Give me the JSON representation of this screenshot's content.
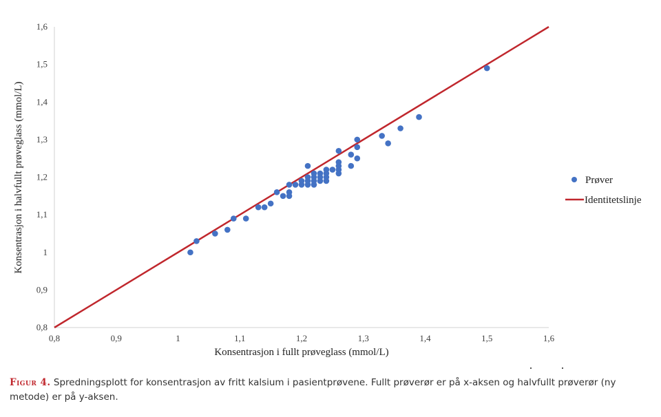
{
  "chart_data": {
    "type": "scatter",
    "title": "",
    "xlabel": "Konsentrasjon i fullt prøveglass (mmol/L)",
    "ylabel": "Konsentrasjon i halvfullt prøveglass (mmol/L)",
    "xlim": [
      0.8,
      1.6
    ],
    "ylim": [
      0.8,
      1.6
    ],
    "x_ticks": [
      "0,8",
      "0,9",
      "1",
      "1,1",
      "1,2",
      "1,3",
      "1,4",
      "1,5",
      "1,6"
    ],
    "y_ticks": [
      "0,8",
      "0,9",
      "1",
      "1,1",
      "1,2",
      "1,3",
      "1,4",
      "1,5",
      "1,6"
    ],
    "grid": false,
    "legend_position": "right",
    "series": [
      {
        "name": "Prøver",
        "type": "scatter",
        "color": "#4472c4",
        "points": [
          [
            1.02,
            1.0
          ],
          [
            1.03,
            1.03
          ],
          [
            1.06,
            1.05
          ],
          [
            1.08,
            1.06
          ],
          [
            1.09,
            1.09
          ],
          [
            1.11,
            1.09
          ],
          [
            1.13,
            1.12
          ],
          [
            1.14,
            1.12
          ],
          [
            1.15,
            1.13
          ],
          [
            1.16,
            1.16
          ],
          [
            1.17,
            1.15
          ],
          [
            1.18,
            1.15
          ],
          [
            1.18,
            1.16
          ],
          [
            1.18,
            1.18
          ],
          [
            1.19,
            1.18
          ],
          [
            1.2,
            1.18
          ],
          [
            1.2,
            1.19
          ],
          [
            1.21,
            1.18
          ],
          [
            1.21,
            1.19
          ],
          [
            1.21,
            1.2
          ],
          [
            1.21,
            1.23
          ],
          [
            1.22,
            1.18
          ],
          [
            1.22,
            1.19
          ],
          [
            1.22,
            1.2
          ],
          [
            1.22,
            1.21
          ],
          [
            1.23,
            1.19
          ],
          [
            1.23,
            1.2
          ],
          [
            1.23,
            1.21
          ],
          [
            1.24,
            1.19
          ],
          [
            1.24,
            1.2
          ],
          [
            1.24,
            1.21
          ],
          [
            1.24,
            1.22
          ],
          [
            1.25,
            1.22
          ],
          [
            1.26,
            1.21
          ],
          [
            1.26,
            1.22
          ],
          [
            1.26,
            1.23
          ],
          [
            1.26,
            1.24
          ],
          [
            1.26,
            1.27
          ],
          [
            1.28,
            1.23
          ],
          [
            1.28,
            1.26
          ],
          [
            1.29,
            1.25
          ],
          [
            1.29,
            1.28
          ],
          [
            1.29,
            1.3
          ],
          [
            1.33,
            1.31
          ],
          [
            1.34,
            1.29
          ],
          [
            1.36,
            1.33
          ],
          [
            1.39,
            1.36
          ],
          [
            1.5,
            1.49
          ]
        ]
      },
      {
        "name": "Identitetslinje",
        "type": "line",
        "color": "#c0272d",
        "points": [
          [
            0.8,
            0.8
          ],
          [
            1.6,
            1.6
          ]
        ]
      }
    ]
  },
  "legend": {
    "items": [
      {
        "label": "Prøver"
      },
      {
        "label": "Identitetslinje"
      }
    ]
  },
  "caption": {
    "figure_label": "Figur 4.",
    "text": "Spredningsplott for konsentrasjon av fritt kalsium i pasientprøvene. Fullt prøverør er på x-aksen og halvfullt prøverør (ny metode) er på y-aksen."
  }
}
